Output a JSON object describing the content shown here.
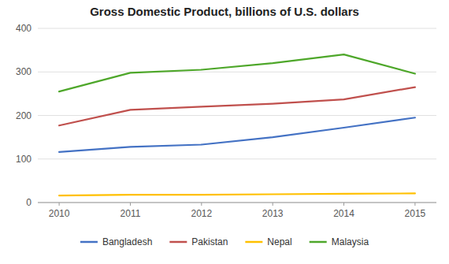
{
  "chart_data": {
    "type": "line",
    "title": "Gross Domestic Product, billions of U.S. dollars",
    "x": [
      2010,
      2011,
      2012,
      2013,
      2014,
      2015
    ],
    "xlim": [
      2009.7,
      2015.3
    ],
    "xticks": [
      2010,
      2011,
      2012,
      2013,
      2014,
      2015
    ],
    "series": [
      {
        "name": "Bangladesh",
        "color": "#4472C4",
        "values": [
          116,
          128,
          133,
          150,
          172,
          195
        ]
      },
      {
        "name": "Pakistan",
        "color": "#C0504D",
        "values": [
          177,
          213,
          220,
          227,
          237,
          265
        ]
      },
      {
        "name": "Nepal",
        "color": "#FFC000",
        "values": [
          16,
          18,
          18,
          19,
          20,
          21
        ]
      },
      {
        "name": "Malaysia",
        "color": "#4EA72A",
        "values": [
          255,
          298,
          305,
          320,
          340,
          296
        ]
      }
    ],
    "ylim": [
      0,
      400
    ],
    "yticks": [
      0,
      100,
      200,
      300,
      400
    ],
    "grid": true,
    "legend": "bottom"
  }
}
